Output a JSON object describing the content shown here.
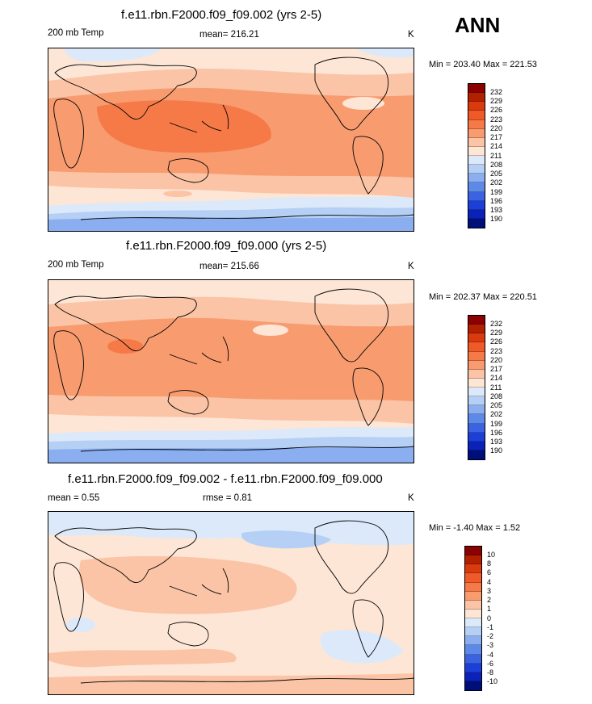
{
  "season": "ANN",
  "panels": [
    {
      "title": "f.e11.rbn.F2000.f09_f09.002 (yrs 2-5)",
      "left_label": "200 mb Temp",
      "center_label": "mean= 216.21",
      "units": "K",
      "minmax": "Min = 203.40 Max = 221.53",
      "palette": "temp",
      "colorbar_labels": [
        "232",
        "229",
        "226",
        "223",
        "220",
        "217",
        "214",
        "211",
        "208",
        "205",
        "202",
        "199",
        "196",
        "193",
        "190"
      ]
    },
    {
      "title": "f.e11.rbn.F2000.f09_f09.000 (yrs 2-5)",
      "left_label": "200 mb Temp",
      "center_label": "mean= 215.66",
      "units": "K",
      "minmax": "Min = 202.37 Max = 220.51",
      "palette": "temp",
      "colorbar_labels": [
        "232",
        "229",
        "226",
        "223",
        "220",
        "217",
        "214",
        "211",
        "208",
        "205",
        "202",
        "199",
        "196",
        "193",
        "190"
      ]
    },
    {
      "title": "f.e11.rbn.F2000.f09_f09.002 - f.e11.rbn.F2000.f09_f09.000",
      "left_label": "mean =   0.55",
      "center_label": "rmse =   0.81",
      "units": "K",
      "minmax": "Min =  -1.40 Max =   1.52",
      "palette": "diff",
      "colorbar_labels": [
        "10",
        "8",
        "6",
        "4",
        "3",
        "2",
        "1",
        "0",
        "-1",
        "-2",
        "-3",
        "-4",
        "-6",
        "-8",
        "-10"
      ]
    }
  ],
  "colors": {
    "palette_16": [
      "#8b0000",
      "#b22000",
      "#d93a0e",
      "#f05a28",
      "#f57a48",
      "#f89c70",
      "#fbc4a6",
      "#fde6d6",
      "#dce9fa",
      "#b5cff5",
      "#8aaeef",
      "#5d89e8",
      "#3b62e0",
      "#1c3fd8",
      "#0a22b8",
      "#000e7a"
    ],
    "ocean_light": "#fde6d6"
  }
}
